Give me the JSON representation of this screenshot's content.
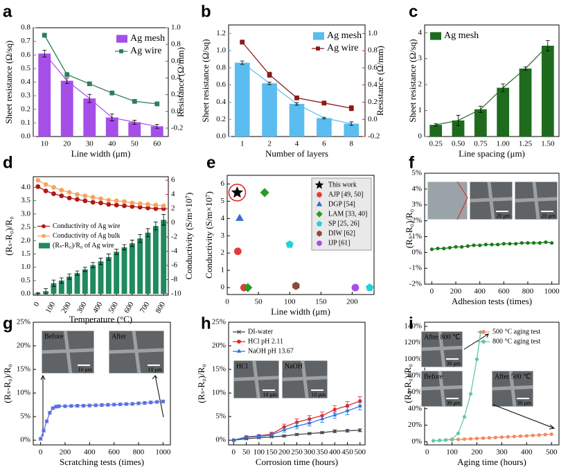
{
  "chart_data": [
    {
      "type": "bar",
      "label": "a",
      "xlabel": "Line width (μm)",
      "ylabel": "Sheet resistance (Ω/sq)",
      "ycolor": "#a64ee8",
      "y2label": "Resistance (Ω/mm)",
      "y2color": "#2e7d5b",
      "categories": [
        "10",
        "20",
        "30",
        "40",
        "50",
        "60"
      ],
      "series": [
        {
          "name": "Ag mesh",
          "type": "bar",
          "color": "#a64ee8",
          "values": [
            0.61,
            0.41,
            0.28,
            0.14,
            0.105,
            0.075
          ],
          "errors": [
            0.025,
            0.02,
            0.03,
            0.025,
            0.015,
            0.015
          ],
          "connect": true
        },
        {
          "name": "Ag wire",
          "type": "line",
          "marker": "square",
          "axis": "y2",
          "color": "#2e7d5b",
          "values": [
            0.91,
            0.44,
            0.33,
            0.22,
            0.12,
            0.09
          ]
        }
      ],
      "ylim": [
        0,
        0.8
      ],
      "yticks": [
        {
          "value": 0,
          "label": "0.0"
        },
        0.1,
        0.2,
        0.3,
        0.4,
        0.5,
        0.6,
        0.7,
        0.8
      ],
      "y2lim": [
        -0.3,
        1.0
      ],
      "y2ticks": [
        -0.2,
        {
          "value": 0,
          "label": "0.0"
        },
        0.2,
        0.4,
        0.6,
        0.8,
        {
          "value": 1,
          "label": "1.0"
        }
      ],
      "legend": "upper right"
    },
    {
      "type": "bar",
      "label": "b",
      "xlabel": "Number of layers",
      "ylabel": "Sheet resistance (Ω/sq)",
      "ycolor": "#3d9be0",
      "y2label": "Resistance (Ω/mm)",
      "y2color": "#c0282d",
      "categories": [
        "1",
        "2",
        "4",
        "6",
        "8"
      ],
      "series": [
        {
          "name": "Ag mesh",
          "type": "bar",
          "color": "#5bbcf0",
          "values": [
            0.86,
            0.62,
            0.38,
            0.215,
            0.15
          ],
          "errors": [
            0.02,
            0.015,
            0.015,
            0.01,
            0.02
          ],
          "connect": true
        },
        {
          "name": "Ag wire",
          "type": "line",
          "marker": "square",
          "axis": "y2",
          "color": "#8b1a1a",
          "values": [
            0.9,
            0.52,
            0.25,
            0.19,
            0.13
          ],
          "errors": [
            0.02,
            0.03,
            0.015,
            0.015,
            0.03
          ]
        }
      ],
      "ylim": [
        0,
        1.3
      ],
      "yticks": [
        {
          "value": 0,
          "label": "0.0"
        },
        0.2,
        0.4,
        0.6,
        0.8,
        {
          "value": 1,
          "label": "1.0"
        },
        1.2
      ],
      "y2lim": [
        -0.2,
        1.1
      ],
      "y2ticks": [
        -0.2,
        {
          "value": 0,
          "label": "0.0"
        },
        0.2,
        0.4,
        0.6,
        0.8,
        {
          "value": 1,
          "label": "1.0"
        }
      ],
      "legend": "upper right"
    },
    {
      "type": "bar",
      "label": "c",
      "xlabel": "Line spacing (μm)",
      "ylabel": "Sheet resistance (Ω/sq)",
      "ycolor": "#3a8a2a",
      "categories": [
        "0.25",
        "0.50",
        "0.75",
        "1.00",
        "1.25",
        "1.50"
      ],
      "series": [
        {
          "name": "Ag mesh",
          "type": "bar",
          "color": "#1e6b1e",
          "values": [
            0.45,
            0.62,
            1.05,
            1.88,
            2.62,
            3.5
          ],
          "errors": [
            0.05,
            0.2,
            0.12,
            0.15,
            0.06,
            0.2
          ],
          "connect": true
        }
      ],
      "ylim": [
        0,
        4.3
      ],
      "yticks": [
        0,
        1,
        2,
        3,
        4
      ],
      "legend": "upper left"
    },
    {
      "type": "bar",
      "label": "d",
      "xlabel": "Temperature (°C)",
      "ylabel": "(Rₛ-R₀)/R₀",
      "ycolor": "#1a8a5a",
      "y2label": "Conductivity (S/m×10⁷)",
      "y2color": "#c0282d",
      "x": [
        0,
        50,
        100,
        150,
        200,
        250,
        300,
        350,
        400,
        450,
        500,
        550,
        600,
        650,
        700,
        750,
        800
      ],
      "series": [
        {
          "name": "Conductivity of Ag wire",
          "type": "line",
          "marker": "circle",
          "axis": "y2",
          "color": "#b01818",
          "values": [
            5.1,
            4.5,
            4.1,
            3.8,
            3.5,
            3.3,
            3.1,
            2.9,
            2.8,
            2.6,
            2.5,
            2.4,
            2.3,
            2.2,
            2.1,
            2.0,
            2.0
          ]
        },
        {
          "name": "Conductivity of Ag bulk",
          "type": "line",
          "marker": "circle",
          "axis": "y2",
          "color": "#f4a460",
          "values": [
            6.0,
            5.4,
            5.0,
            4.6,
            4.3,
            4.0,
            3.8,
            3.6,
            3.4,
            3.2,
            3.1,
            3.0,
            2.8,
            2.7,
            2.6,
            2.5,
            2.4
          ]
        },
        {
          "name": "(Rₛ-R₀)/R₀ of Ag wire",
          "type": "bar",
          "color": "#1f8a5e",
          "values": [
            0.02,
            0.1,
            0.4,
            0.5,
            0.65,
            0.78,
            0.92,
            1.08,
            1.22,
            1.38,
            1.58,
            1.75,
            1.9,
            2.08,
            2.3,
            2.55,
            2.78
          ],
          "errors": [
            0.02,
            0.1,
            0.12,
            0.1,
            0.1,
            0.08,
            0.08,
            0.1,
            0.12,
            0.12,
            0.1,
            0.1,
            0.12,
            0.15,
            0.15,
            0.15,
            0.2
          ]
        }
      ],
      "xlim": [
        -30,
        830
      ],
      "xticks": [
        0,
        100,
        200,
        300,
        400,
        500,
        600,
        700,
        800
      ],
      "ylim": [
        -0.05,
        4.4
      ],
      "yticks": [
        {
          "value": 0,
          "label": "0.0"
        },
        0.5,
        {
          "value": 1,
          "label": "1.0"
        },
        1.5,
        {
          "value": 2,
          "label": "2.0"
        },
        2.5,
        {
          "value": 3,
          "label": "3.0"
        },
        3.5,
        {
          "value": 4,
          "label": "4.0"
        }
      ],
      "y2lim": [
        -10.2,
        6.5
      ],
      "y2ticks": [
        -10,
        -8,
        -6,
        -4,
        -2,
        0,
        2,
        4,
        6
      ],
      "legend": "center left"
    },
    {
      "type": "scatter",
      "label": "e",
      "xlabel": "Line width (μm)",
      "ylabel": "Conductivity (S/m×10⁷)",
      "series": [
        {
          "name": "This work",
          "marker": "star",
          "color": "#000000",
          "x": [
            16
          ],
          "values": [
            5.5
          ]
        },
        {
          "name": "AJP [49, 50]",
          "marker": "circle",
          "color": "#e8383d",
          "x": [
            17,
            27
          ],
          "values": [
            2.1,
            0
          ]
        },
        {
          "name": "DGP [54]",
          "marker": "triangle",
          "color": "#2f6fd6",
          "x": [
            20
          ],
          "values": [
            4.0
          ]
        },
        {
          "name": "LAM [33, 40]",
          "marker": "diamond",
          "color": "#2a9a2a",
          "x": [
            60,
            33
          ],
          "values": [
            5.5,
            0
          ]
        },
        {
          "name": "SP [25, 26]",
          "marker": "pentagon",
          "color": "#22d3d3",
          "x": [
            100,
            228
          ],
          "values": [
            2.5,
            0
          ]
        },
        {
          "name": "DIW [62]",
          "marker": "hexagon",
          "color": "#8b4a3a",
          "x": [
            110
          ],
          "values": [
            0.1
          ]
        },
        {
          "name": "IJP [61]",
          "marker": "circle",
          "color": "#a64ee8",
          "x": [
            205
          ],
          "values": [
            0
          ]
        }
      ],
      "xlim": [
        0,
        235
      ],
      "xticks": [
        0,
        50,
        100,
        150,
        200
      ],
      "ylim": [
        -0.4,
        6.5
      ],
      "yticks": [
        0,
        1,
        2,
        3,
        4,
        5,
        6
      ],
      "legend": "upper right",
      "legend_box": true
    },
    {
      "type": "line",
      "label": "f",
      "xlabel": "Adhesion tests (times)",
      "ylabel": "(Rₛ-R₀)/R₀",
      "x": [
        0,
        50,
        100,
        150,
        200,
        250,
        300,
        350,
        400,
        450,
        500,
        550,
        600,
        650,
        700,
        750,
        800,
        850,
        900,
        950,
        1000
      ],
      "series": [
        {
          "name": "",
          "marker": "circle",
          "color": "#1a7a1a",
          "values": [
            0.2,
            0.25,
            0.25,
            0.3,
            0.35,
            0.35,
            0.4,
            0.45,
            0.45,
            0.5,
            0.5,
            0.5,
            0.55,
            0.55,
            0.55,
            0.6,
            0.6,
            0.6,
            0.6,
            0.65,
            0.6
          ]
        }
      ],
      "xlim": [
        -60,
        1060
      ],
      "xticks": [
        0,
        200,
        400,
        600,
        800,
        1000
      ],
      "ylim": [
        -2,
        5
      ],
      "yticks": [
        {
          "value": -2,
          "label": "-2%"
        },
        {
          "value": -1,
          "label": "-1%"
        },
        {
          "value": 0,
          "label": "0%"
        },
        {
          "value": 1,
          "label": "1%"
        },
        {
          "value": 2,
          "label": "2%"
        },
        {
          "value": 3,
          "label": "3%"
        },
        {
          "value": 4,
          "label": "4%"
        },
        {
          "value": 5,
          "label": "5%"
        }
      ],
      "insets": [
        {
          "scale": "20 μm"
        },
        {
          "scale": "20 μm"
        }
      ]
    },
    {
      "type": "line",
      "label": "g",
      "xlabel": "Scratching tests (times)",
      "ylabel": "(Rₛ-R₀)/R₀",
      "x": [
        0,
        25,
        50,
        75,
        100,
        125,
        150,
        200,
        250,
        300,
        350,
        400,
        450,
        500,
        550,
        600,
        650,
        700,
        750,
        800,
        850,
        900,
        950,
        1000
      ],
      "series": [
        {
          "name": "",
          "marker": "circle",
          "color": "#5b6fe0",
          "values": [
            0.3,
            2.0,
            4.0,
            5.8,
            6.8,
            7.1,
            7.2,
            7.2,
            7.25,
            7.3,
            7.3,
            7.35,
            7.4,
            7.45,
            7.5,
            7.55,
            7.6,
            7.65,
            7.7,
            7.8,
            7.9,
            8.0,
            8.1,
            8.2
          ],
          "errors": [
            0.3,
            0.3,
            0.3,
            0.3,
            0.3,
            0.3,
            0.3,
            0.3,
            0.3,
            0.3,
            0.3,
            0.3,
            0.3,
            0.3,
            0.3,
            0.3,
            0.3,
            0.3,
            0.3,
            0.3,
            0.3,
            0.3,
            0.3,
            0.3
          ]
        }
      ],
      "xlim": [
        -60,
        1060
      ],
      "xticks": [
        0,
        200,
        400,
        600,
        800,
        1000
      ],
      "ylim": [
        -1,
        25
      ],
      "yticks": [
        {
          "value": 0,
          "label": "0%"
        },
        {
          "value": 5,
          "label": "5%"
        },
        {
          "value": 10,
          "label": "10%"
        },
        {
          "value": 15,
          "label": "15%"
        },
        {
          "value": 20,
          "label": "20%"
        },
        {
          "value": 25,
          "label": "25%"
        }
      ],
      "insets": [
        {
          "label": "Before",
          "scale": "10 μm"
        },
        {
          "label": "After",
          "scale": "10 μm"
        }
      ]
    },
    {
      "type": "line",
      "label": "h",
      "xlabel": "Corrosion time (hours)",
      "ylabel": "(Rₛ-R₀)/R₀",
      "x": [
        0,
        50,
        100,
        150,
        200,
        250,
        300,
        350,
        400,
        450,
        500
      ],
      "series": [
        {
          "name": "DI-water",
          "marker": "cross",
          "color": "#444444",
          "values": [
            0,
            0.3,
            0.5,
            0.7,
            0.9,
            1.2,
            1.4,
            1.6,
            1.9,
            2.0,
            2.1
          ],
          "errors": [
            0,
            0.1,
            0.1,
            0.1,
            0.2,
            0.2,
            0.2,
            0.2,
            0.3,
            0.3,
            0.3
          ]
        },
        {
          "name": "HCl  pH 2.11",
          "marker": "circle",
          "color": "#e8232a",
          "values": [
            0,
            0.7,
            0.9,
            1.3,
            2.8,
            3.8,
            4.5,
            5.2,
            6.5,
            7.3,
            8.3
          ],
          "errors": [
            0,
            0.2,
            0.3,
            0.4,
            0.6,
            0.7,
            0.7,
            0.8,
            0.8,
            0.9,
            0.9
          ]
        },
        {
          "name": "NaOH pH 13.67",
          "marker": "triangle",
          "color": "#1f77e0",
          "values": [
            0,
            0.6,
            0.8,
            1.1,
            2.2,
            3.0,
            3.6,
            4.5,
            5.3,
            6.2,
            7.2
          ],
          "errors": [
            0,
            0.2,
            0.3,
            0.4,
            0.5,
            0.6,
            0.6,
            0.7,
            0.7,
            0.8,
            0.8
          ]
        }
      ],
      "xlim": [
        -20,
        520
      ],
      "xticks": [
        0,
        50,
        100,
        150,
        200,
        250,
        300,
        350,
        400,
        450,
        500
      ],
      "ylim": [
        -1,
        25
      ],
      "yticks": [
        {
          "value": 0,
          "label": "0%"
        },
        {
          "value": 5,
          "label": "5%"
        },
        {
          "value": 10,
          "label": "10%"
        },
        {
          "value": 15,
          "label": "15%"
        },
        {
          "value": 20,
          "label": "20%"
        },
        {
          "value": 25,
          "label": "25%"
        }
      ],
      "legend": "upper left",
      "insets": [
        {
          "label": "HCl",
          "scale": "10 μm"
        },
        {
          "label": "NaOH",
          "scale": "10 μm"
        }
      ]
    },
    {
      "type": "line",
      "label": "i",
      "xlabel": "Aging time (hours)",
      "ylabel": "(Rₛ-R₀)/R₀",
      "series": [
        {
          "name": "500 °C  aging test",
          "marker": "circle",
          "color": "#f4895f",
          "x": [
            25,
            50,
            75,
            100,
            125,
            150,
            175,
            200,
            225,
            250,
            275,
            300,
            325,
            350,
            375,
            400,
            425,
            450,
            475,
            500
          ],
          "values": [
            1,
            1.5,
            2,
            2.3,
            2.7,
            3,
            3.4,
            3.8,
            4.2,
            4.6,
            5,
            5.4,
            5.8,
            6.2,
            6.6,
            7,
            7.5,
            8,
            8.5,
            9
          ]
        },
        {
          "name": "800 °C  aging test",
          "marker": "circle",
          "color": "#5ec9a5",
          "x": [
            25,
            50,
            75,
            100,
            125,
            150,
            175,
            200,
            215
          ],
          "values": [
            1,
            1.5,
            2,
            3,
            10,
            30,
            58,
            100,
            133
          ]
        }
      ],
      "xlim": [
        -10,
        530
      ],
      "xticks": [
        0,
        100,
        200,
        300,
        400,
        500
      ],
      "ylim": [
        -4,
        145
      ],
      "yticks": [
        {
          "value": 0,
          "label": "0%"
        },
        {
          "value": 20,
          "label": "20%"
        },
        {
          "value": 40,
          "label": "40%"
        },
        {
          "value": 60,
          "label": "60%"
        },
        {
          "value": 80,
          "label": "80%"
        },
        {
          "value": 100,
          "label": "100%"
        },
        {
          "value": 120,
          "label": "120%"
        },
        {
          "value": 140,
          "label": "140%"
        }
      ],
      "legend": "upper right",
      "insets": [
        {
          "label": "After 800 ℃",
          "scale": "30 μm"
        },
        {
          "label": "Before",
          "scale": "30 μm"
        },
        {
          "label": "After 500 ℃",
          "scale": "30 μm"
        }
      ]
    }
  ]
}
